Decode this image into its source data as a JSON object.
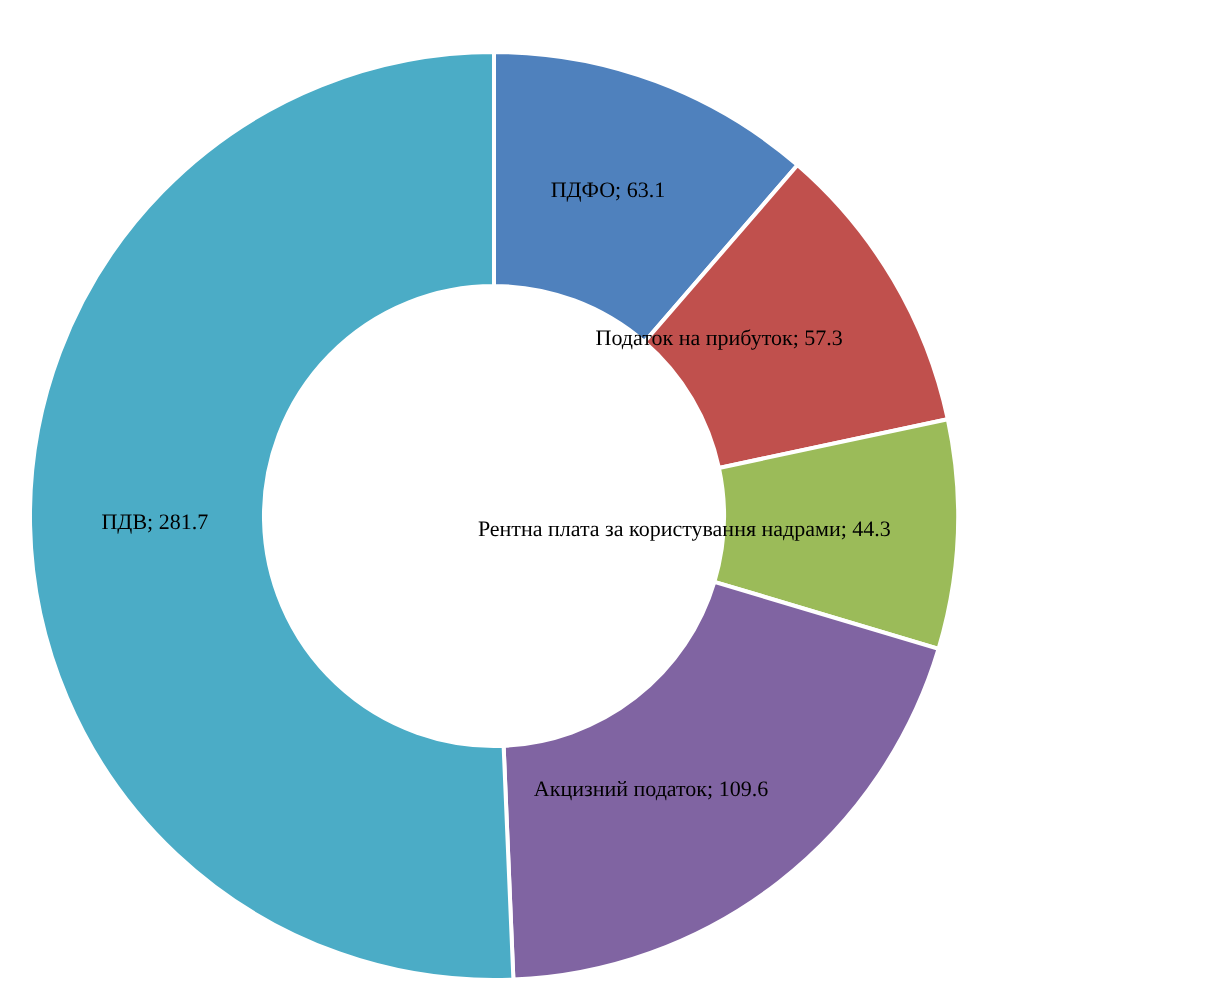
{
  "chart_data": {
    "type": "donut",
    "categories": [
      "ПДФО",
      "Податок на прибуток",
      "Рентна плата за користування надрами",
      "Акцизний податок",
      "ПДВ"
    ],
    "values": [
      63.1,
      57.3,
      44.3,
      109.6,
      281.7
    ],
    "colors": [
      "#4f81bd",
      "#c0504d",
      "#9bbb59",
      "#8064a2",
      "#4bacc6"
    ],
    "value_labels": [
      "; 63.1",
      "; 57.3",
      "; 44.3",
      "; 109.6",
      "; 281.7"
    ]
  }
}
